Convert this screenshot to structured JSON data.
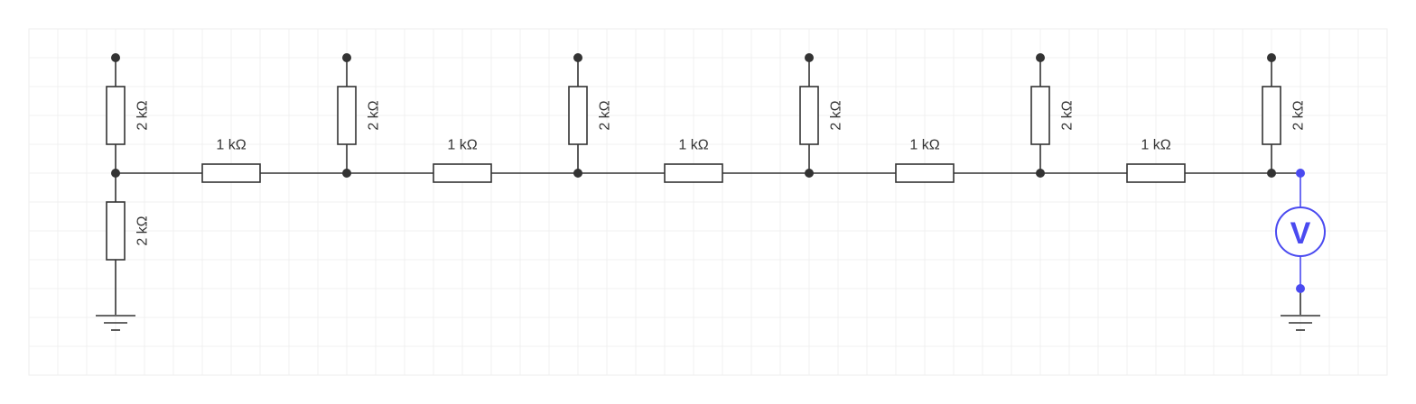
{
  "diagram": {
    "title": "",
    "colors": {
      "wire": "#333333",
      "meter": "#4a4af0",
      "grid": "#eeeeee"
    },
    "shunt_label": "2 kΩ",
    "series_label": "1 kΩ",
    "top_shunts": [
      {
        "label": "2 kΩ"
      },
      {
        "label": "2 kΩ"
      },
      {
        "label": "2 kΩ"
      },
      {
        "label": "2 kΩ"
      },
      {
        "label": "2 kΩ"
      },
      {
        "label": "2 kΩ"
      }
    ],
    "series_resistors": [
      {
        "label": "1 kΩ"
      },
      {
        "label": "1 kΩ"
      },
      {
        "label": "1 kΩ"
      },
      {
        "label": "1 kΩ"
      },
      {
        "label": "1 kΩ"
      }
    ],
    "bottom_shunt": {
      "label": "2 kΩ"
    },
    "voltmeter": {
      "symbol": "V",
      "icon": "voltmeter-icon"
    },
    "ground_icon": "ground-icon"
  }
}
